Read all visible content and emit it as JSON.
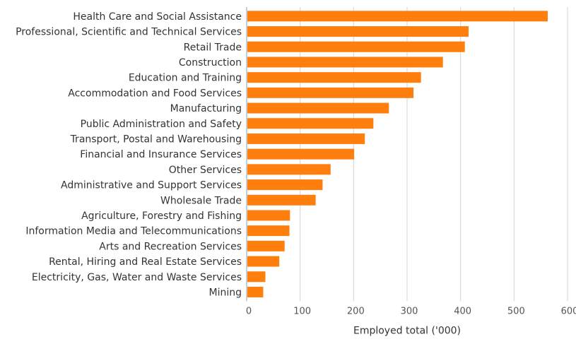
{
  "chart_data": {
    "type": "bar",
    "orientation": "horizontal",
    "title": "",
    "xlabel": "Employed total ('000)",
    "ylabel": "",
    "xlim": [
      0,
      600
    ],
    "xticks": [
      0,
      100,
      200,
      300,
      400,
      500,
      600
    ],
    "grid": true,
    "bar_color": "#ff7f0e",
    "categories": [
      "Health Care and Social Assistance",
      "Professional, Scientific and Technical Services",
      "Retail Trade",
      "Construction",
      "Education and Training",
      "Accommodation and Food Services",
      "Manufacturing",
      "Public Administration and Safety",
      "Transport, Postal and Warehousing",
      "Financial and Insurance Services",
      "Other Services",
      "Administrative and Support Services",
      "Wholesale Trade",
      "Agriculture, Forestry and Fishing",
      "Information Media and Telecommunications",
      "Arts and Recreation Services",
      "Rental, Hiring and Real Estate Services",
      "Electricity, Gas, Water and Waste Services",
      "Mining"
    ],
    "values": [
      563,
      415,
      408,
      367,
      326,
      312,
      266,
      237,
      221,
      201,
      157,
      142,
      129,
      81,
      80,
      71,
      61,
      35,
      31
    ]
  }
}
